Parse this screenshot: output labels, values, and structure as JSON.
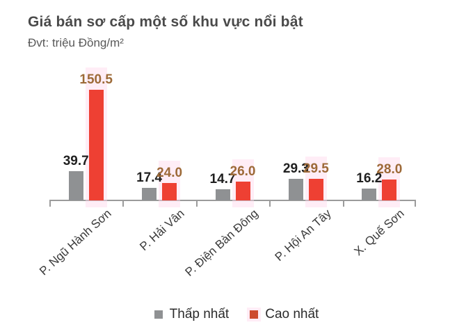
{
  "chart_data": {
    "type": "bar",
    "title": "Giá bán sơ cấp một số khu vực nổi bật",
    "unit_label": "Đvt: triệu Đồng/m²",
    "categories": [
      "P. Ngũ Hành Sơn",
      "P. Hải Vân",
      "P. Điện Bàn Đông",
      "P. Hội An Tây",
      "X. Quế Sơn"
    ],
    "series": [
      {
        "name": "Thấp nhất",
        "color": "#8f9193",
        "legend_color": "#8f9193",
        "label_color": "#1f1f1f",
        "values": [
          39.7,
          17.4,
          14.7,
          29.3,
          16.2
        ],
        "labels": [
          "39.7",
          "17.4",
          "14.7",
          "29.3",
          "16.2"
        ]
      },
      {
        "name": "Cao nhất",
        "color": "#ee4033",
        "legend_color": "#cd4a2f",
        "label_color": "#9d6a38",
        "values": [
          150.5,
          24.0,
          26.0,
          29.5,
          28.0
        ],
        "labels": [
          "150.5",
          "24.0",
          "26.0",
          "29.5",
          "28.0"
        ]
      }
    ],
    "ylim": [
      0,
      160
    ],
    "grid": false,
    "value_labels": true,
    "legend_position": "bottom",
    "x_label_rotation": -42
  },
  "style": {
    "axis_color": "#9b9b9b",
    "halo_color": "rgba(255,216,234,0.45)",
    "title_color": "#4a4a4a"
  }
}
